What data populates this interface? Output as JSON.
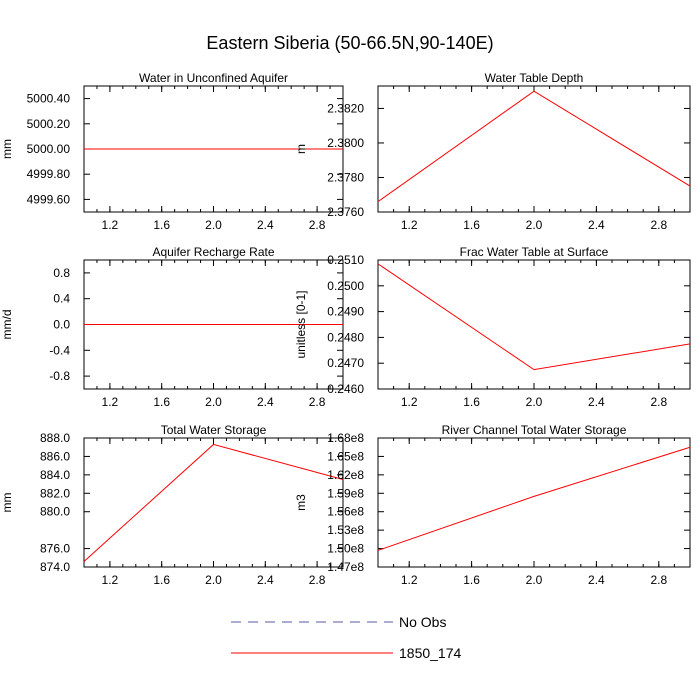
{
  "title": "Eastern Siberia (50-66.5N,90-140E)",
  "chart_data": [
    {
      "type": "line",
      "title": "Water in Unconfined Aquifer",
      "xlabel": "",
      "ylabel": "mm",
      "xlim": [
        1.0,
        3.0
      ],
      "ylim": [
        4999.5,
        5000.5
      ],
      "xticks": [
        1.2,
        1.6,
        2.0,
        2.4,
        2.8
      ],
      "xtick_labels": [
        "1.2",
        "1.6",
        "2.0",
        "2.4",
        "2.8"
      ],
      "yticks": [
        4999.6,
        4999.8,
        5000.0,
        5000.2,
        5000.4
      ],
      "ytick_labels": [
        "4999.60",
        "4999.80",
        "5000.00",
        "5000.20",
        "5000.40"
      ],
      "series": [
        {
          "name": "1850_174",
          "x": [
            1,
            2,
            3
          ],
          "y": [
            5000.0,
            5000.0,
            5000.0
          ],
          "color": "#ff0000"
        }
      ]
    },
    {
      "type": "line",
      "title": "Water Table Depth",
      "xlabel": "",
      "ylabel": "m",
      "xlim": [
        1.0,
        3.0
      ],
      "ylim": [
        2.376,
        2.3833
      ],
      "xticks": [
        1.2,
        1.6,
        2.0,
        2.4,
        2.8
      ],
      "xtick_labels": [
        "1.2",
        "1.6",
        "2.0",
        "2.4",
        "2.8"
      ],
      "yticks": [
        2.376,
        2.378,
        2.38,
        2.382
      ],
      "ytick_labels": [
        "2.3760",
        "2.3780",
        "2.3800",
        "2.3820"
      ],
      "series": [
        {
          "name": "1850_174",
          "x": [
            1,
            2,
            3
          ],
          "y": [
            2.3766,
            2.383,
            2.3775
          ],
          "color": "#ff0000"
        }
      ]
    },
    {
      "type": "line",
      "title": "Aquifer Recharge Rate",
      "xlabel": "",
      "ylabel": "mm/d",
      "xlim": [
        1.0,
        3.0
      ],
      "ylim": [
        -1.0,
        1.0
      ],
      "xticks": [
        1.2,
        1.6,
        2.0,
        2.4,
        2.8
      ],
      "xtick_labels": [
        "1.2",
        "1.6",
        "2.0",
        "2.4",
        "2.8"
      ],
      "yticks": [
        -0.8,
        -0.4,
        0.0,
        0.4,
        0.8
      ],
      "ytick_labels": [
        "-0.8",
        "-0.4",
        "0.0",
        "0.4",
        "0.8"
      ],
      "series": [
        {
          "name": "1850_174",
          "x": [
            1,
            2,
            3
          ],
          "y": [
            0.0,
            0.0,
            0.0
          ],
          "color": "#ff0000"
        }
      ]
    },
    {
      "type": "line",
      "title": "Frac Water Table at Surface",
      "xlabel": "",
      "ylabel": "unitless [0-1]",
      "xlim": [
        1.0,
        3.0
      ],
      "ylim": [
        0.246,
        0.251
      ],
      "xticks": [
        1.2,
        1.6,
        2.0,
        2.4,
        2.8
      ],
      "xtick_labels": [
        "1.2",
        "1.6",
        "2.0",
        "2.4",
        "2.8"
      ],
      "yticks": [
        0.246,
        0.247,
        0.248,
        0.249,
        0.25,
        0.251
      ],
      "ytick_labels": [
        "0.2460",
        "0.2470",
        "0.2480",
        "0.2490",
        "0.2500",
        "0.2510"
      ],
      "series": [
        {
          "name": "1850_174",
          "x": [
            1,
            2,
            3
          ],
          "y": [
            0.25085,
            0.24675,
            0.24775
          ],
          "color": "#ff0000"
        }
      ]
    },
    {
      "type": "line",
      "title": "Total Water Storage",
      "xlabel": "",
      "ylabel": "mm",
      "xlim": [
        1.0,
        3.0
      ],
      "ylim": [
        874.0,
        888.0
      ],
      "xticks": [
        1.2,
        1.6,
        2.0,
        2.4,
        2.8
      ],
      "xtick_labels": [
        "1.2",
        "1.6",
        "2.0",
        "2.4",
        "2.8"
      ],
      "yticks": [
        874.0,
        876.0,
        880.0,
        882.0,
        884.0,
        886.0,
        888.0
      ],
      "ytick_labels": [
        "874.0",
        "876.0",
        "880.0",
        "882.0",
        "884.0",
        "886.0",
        "888.0"
      ],
      "series": [
        {
          "name": "1850_174",
          "x": [
            1,
            2,
            3
          ],
          "y": [
            874.6,
            887.3,
            883.5
          ],
          "color": "#ff0000"
        }
      ]
    },
    {
      "type": "line",
      "title": "River Channel Total Water Storage",
      "xlabel": "",
      "ylabel": "m3",
      "xlim": [
        1.0,
        3.0
      ],
      "ylim": [
        147000000.0,
        168000000.0
      ],
      "xticks": [
        1.2,
        1.6,
        2.0,
        2.4,
        2.8
      ],
      "xtick_labels": [
        "1.2",
        "1.6",
        "2.0",
        "2.4",
        "2.8"
      ],
      "yticks": [
        147000000.0,
        150000000.0,
        153000000.0,
        156000000.0,
        159000000.0,
        162000000.0,
        165000000.0,
        168000000.0
      ],
      "ytick_labels": [
        "1.47e8",
        "1.50e8",
        "1.53e8",
        "1.56e8",
        "1.59e8",
        "1.62e8",
        "1.65e8",
        "1.68e8"
      ],
      "series": [
        {
          "name": "1850_174",
          "x": [
            1,
            2,
            3
          ],
          "y": [
            149700000.0,
            158500000.0,
            166500000.0
          ],
          "color": "#ff0000"
        }
      ]
    }
  ],
  "legend": {
    "placement": "bottom-center",
    "entries": [
      {
        "label": "No Obs",
        "color": "#5a5aa0",
        "dash": "dashed"
      },
      {
        "label": "1850_174",
        "color": "#ff0000",
        "dash": "solid"
      }
    ]
  }
}
